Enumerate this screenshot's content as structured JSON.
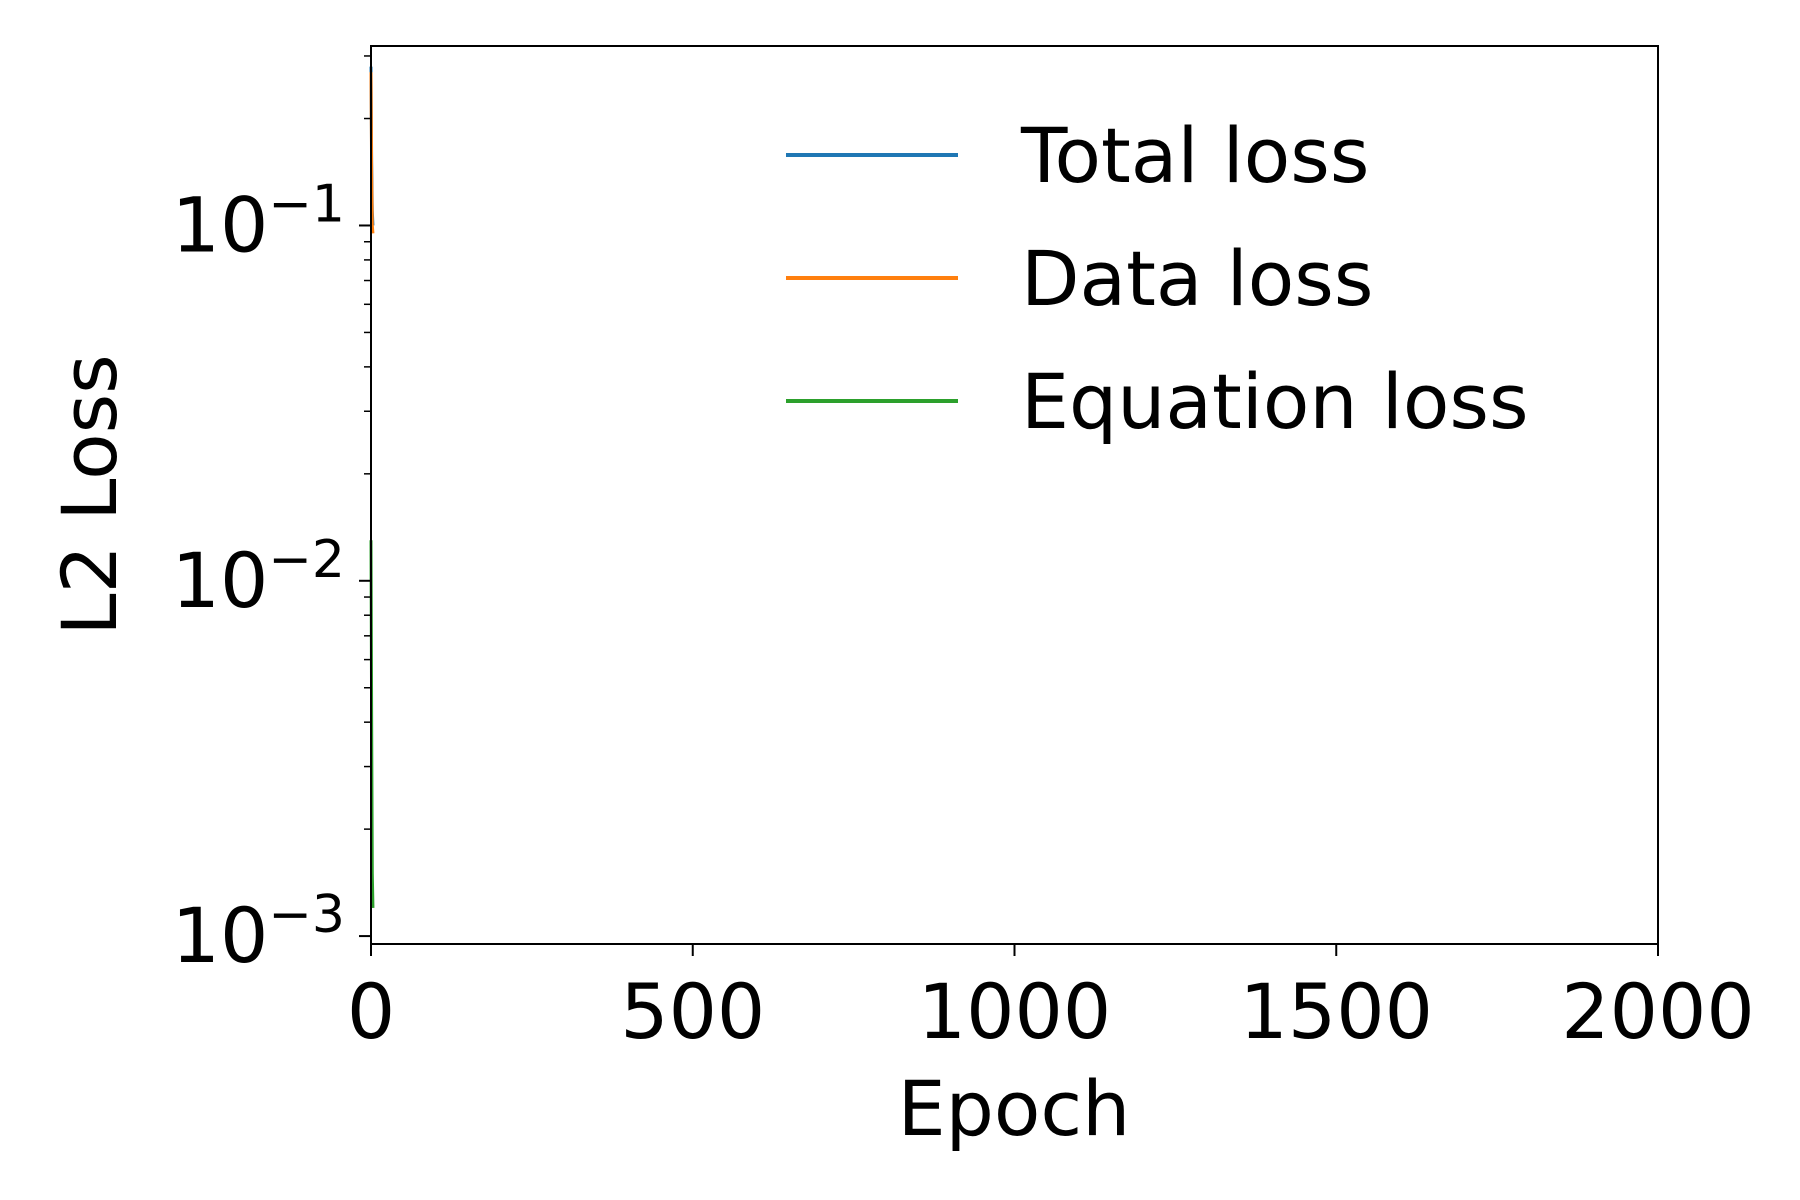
{
  "chart_data": {
    "type": "line",
    "title": "",
    "xlabel": "Epoch",
    "ylabel": "L2 Loss",
    "xlim": [
      0,
      2000
    ],
    "ylim": [
      0.00095,
      0.32
    ],
    "yscale": "log",
    "grid": false,
    "legend_position": "top-right",
    "x_ticks": [
      {
        "value": 0,
        "label": "0"
      },
      {
        "value": 500,
        "label": "500"
      },
      {
        "value": 1000,
        "label": "1000"
      },
      {
        "value": 1500,
        "label": "1500"
      },
      {
        "value": 2000,
        "label": "2000"
      }
    ],
    "y_ticks": [
      {
        "value": 0.001,
        "base": "10",
        "exp": "−3"
      },
      {
        "value": 0.01,
        "base": "10",
        "exp": "−2"
      },
      {
        "value": 0.1,
        "base": "10",
        "exp": "−1"
      }
    ],
    "series": [
      {
        "name": "Total loss",
        "color": "#1f77b4",
        "x": [
          0,
          1,
          2,
          3
        ],
        "y": [
          0.28,
          0.15,
          0.11,
          0.1
        ]
      },
      {
        "name": "Data loss",
        "color": "#ff7f0e",
        "x": [
          0,
          1,
          2,
          3
        ],
        "y": [
          0.27,
          0.14,
          0.1,
          0.095
        ]
      },
      {
        "name": "Equation loss",
        "color": "#2ca02c",
        "x": [
          0,
          1,
          2,
          3
        ],
        "y": [
          0.013,
          0.004,
          0.0015,
          0.0012
        ]
      }
    ]
  }
}
